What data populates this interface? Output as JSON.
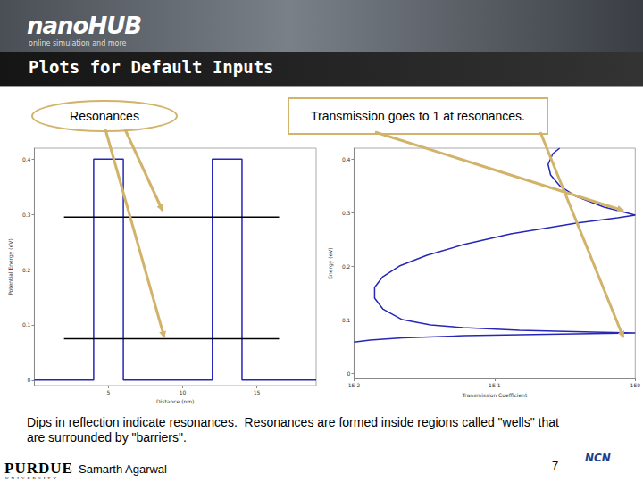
{
  "header": {
    "logo": "nanoHUB",
    "tagline": "online simulation and more",
    "title": "Plots for Default Inputs"
  },
  "callouts": [
    "Resonances",
    "Transmission goes to 1 at resonances."
  ],
  "caption": "Dips in reflection indicate resonances.  Resonances are formed inside regions called \"wells\" that are surrounded by \"barriers\".",
  "footer": {
    "institution": "PURDUE",
    "institution_sub": "UNIVERSITY",
    "author": "Samarth Agarwal",
    "page": 7,
    "partner": "NCN"
  },
  "chart_data": [
    {
      "type": "line",
      "xlabel": "Distance (nm)",
      "ylabel": "Potential Energy (eV)",
      "xlim": [
        0,
        19
      ],
      "xticks": [
        5,
        10,
        15
      ],
      "ylim": [
        -0.01,
        0.42
      ],
      "yticks": [
        0,
        0.1,
        0.2,
        0.3,
        0.4
      ],
      "grid": false,
      "series": [
        {
          "color": "#2626b8",
          "x": [
            0,
            4,
            4,
            6,
            6,
            12,
            12,
            14,
            14,
            19
          ],
          "values": [
            0,
            0,
            0.4,
            0.4,
            0,
            0,
            0.4,
            0.4,
            0,
            0
          ]
        },
        {
          "color": "#000000",
          "x": [
            2,
            16.5
          ],
          "values": [
            0.295,
            0.295
          ]
        },
        {
          "color": "#000000",
          "x": [
            2,
            16.5
          ],
          "values": [
            0.075,
            0.075
          ]
        }
      ]
    },
    {
      "type": "line",
      "xlabel": "Transmission Coefficient",
      "ylabel": "Energy (eV)",
      "log": "x",
      "xlim": [
        0.01,
        1
      ],
      "xticks": [
        {
          "value": 0.01,
          "label": "1E-2"
        },
        {
          "value": 0.1,
          "label": "1E-1"
        },
        {
          "value": 1,
          "label": "1E0"
        }
      ],
      "ylim": [
        -0.01,
        0.42
      ],
      "yticks": [
        0,
        0.1,
        0.2,
        0.3,
        0.4
      ],
      "grid": false,
      "series": [
        {
          "color": "#2626b8",
          "x": [
            0.01,
            0.013,
            0.022,
            0.06,
            0.3,
            1.0,
            0.5,
            0.15,
            0.06,
            0.035,
            0.022,
            0.016,
            0.014,
            0.014,
            0.016,
            0.021,
            0.033,
            0.06,
            0.13,
            0.38,
            0.75,
            1.0,
            0.85,
            0.6,
            0.38,
            0.29,
            0.25,
            0.24,
            0.26,
            0.29
          ],
          "values": [
            0.058,
            0.062,
            0.066,
            0.07,
            0.073,
            0.075,
            0.077,
            0.08,
            0.085,
            0.09,
            0.1,
            0.12,
            0.14,
            0.16,
            0.18,
            0.2,
            0.22,
            0.24,
            0.26,
            0.28,
            0.29,
            0.295,
            0.3,
            0.31,
            0.33,
            0.35,
            0.37,
            0.39,
            0.41,
            0.42
          ]
        }
      ]
    }
  ]
}
